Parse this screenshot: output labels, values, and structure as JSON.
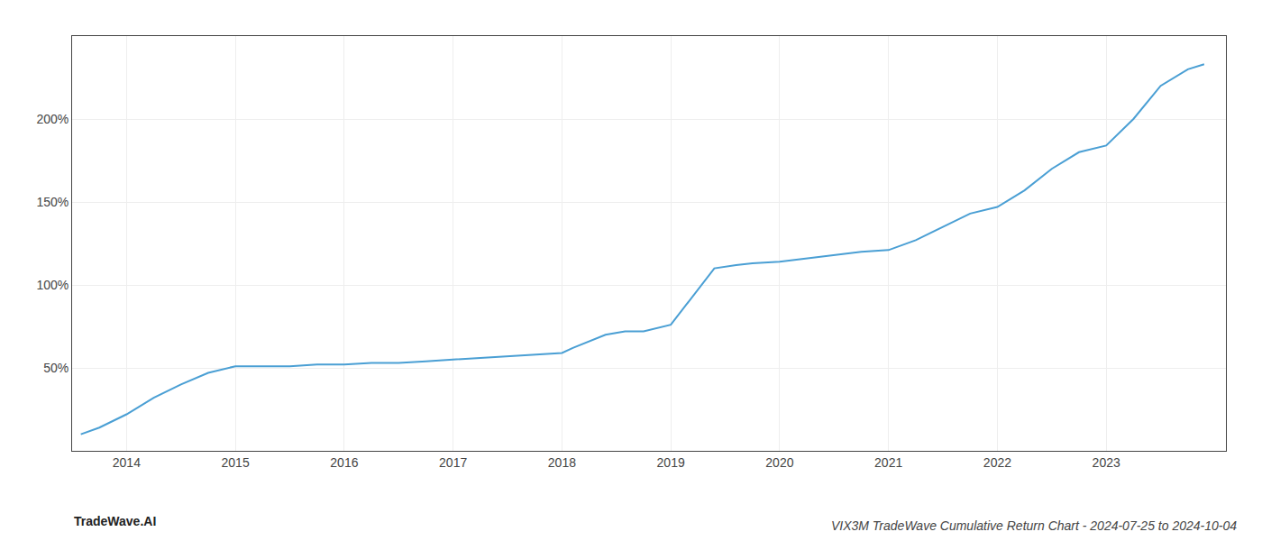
{
  "chart_data": {
    "type": "line",
    "title": "VIX3M TradeWave Cumulative Return Chart - 2024-07-25 to 2024-10-04",
    "annotations": [
      "TradeWave.AI"
    ],
    "x": [
      2013.58,
      2013.75,
      2014.0,
      2014.25,
      2014.5,
      2014.75,
      2015.0,
      2015.25,
      2015.5,
      2015.75,
      2016.0,
      2016.25,
      2016.5,
      2016.75,
      2017.0,
      2017.25,
      2017.5,
      2017.75,
      2018.0,
      2018.1,
      2018.25,
      2018.4,
      2018.58,
      2018.75,
      2019.0,
      2019.2,
      2019.4,
      2019.6,
      2019.75,
      2020.0,
      2020.25,
      2020.5,
      2020.75,
      2021.0,
      2021.25,
      2021.5,
      2021.75,
      2022.0,
      2022.25,
      2022.5,
      2022.75,
      2023.0,
      2023.25,
      2023.5,
      2023.75,
      2023.9
    ],
    "values": [
      10,
      14,
      22,
      32,
      40,
      47,
      51,
      51,
      51,
      52,
      52,
      53,
      53,
      54,
      55,
      56,
      57,
      58,
      59,
      62,
      66,
      70,
      72,
      72,
      76,
      93,
      110,
      112,
      113,
      114,
      116,
      118,
      120,
      121,
      127,
      135,
      143,
      147,
      157,
      170,
      180,
      184,
      200,
      220,
      230,
      233
    ],
    "color": "#4a9fd4",
    "xlim": [
      2013.5,
      2024.1
    ],
    "xticks": [
      2014,
      2015,
      2016,
      2017,
      2018,
      2019,
      2020,
      2021,
      2022,
      2023
    ],
    "ylim": [
      0,
      250
    ],
    "yticks": [
      {
        "value": 50,
        "label": "50%"
      },
      {
        "value": 100,
        "label": "100%"
      },
      {
        "value": 150,
        "label": "150%"
      },
      {
        "value": 200,
        "label": "200%"
      }
    ],
    "grid": true
  }
}
